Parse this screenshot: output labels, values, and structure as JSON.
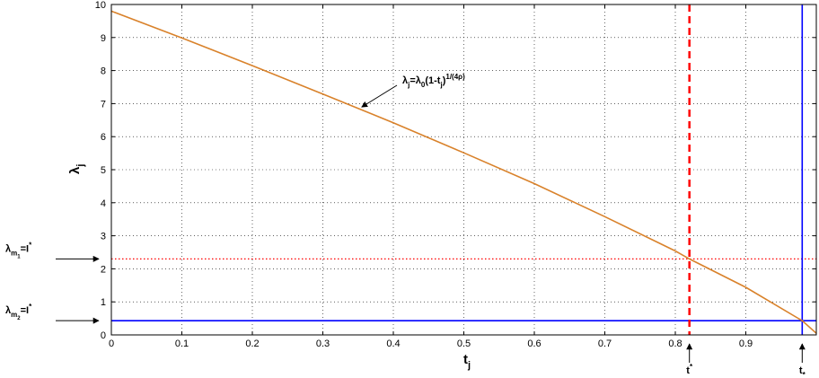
{
  "chart_data": {
    "type": "line",
    "xlabel": "t",
    "xlabel_sub": "j",
    "ylabel": "λ",
    "ylabel_sub": "j",
    "xlim": [
      0,
      1
    ],
    "ylim": [
      0,
      10
    ],
    "xticks": [
      0,
      0.1,
      0.2,
      0.3,
      0.4,
      0.5,
      0.6,
      0.7,
      0.8,
      0.9
    ],
    "xtick_labels": [
      "0",
      "0.1",
      "0.2",
      "0.3",
      "0.4",
      "0.5",
      "0.6",
      "0.7",
      "0.8",
      "0.9"
    ],
    "yticks": [
      0,
      1,
      2,
      3,
      4,
      5,
      6,
      7,
      8,
      9,
      10
    ],
    "ytick_labels": [
      "0",
      "1",
      "2",
      "3",
      "4",
      "5",
      "6",
      "7",
      "8",
      "9",
      "10"
    ],
    "grid": true,
    "series": [
      {
        "color": "#d9822b",
        "x": [
          0,
          0.1,
          0.2,
          0.3,
          0.4,
          0.5,
          0.6,
          0.7,
          0.8,
          0.82,
          0.9,
          0.98,
          1.0
        ],
        "y": [
          9.8,
          8.99,
          8.15,
          7.29,
          6.42,
          5.51,
          4.58,
          3.58,
          2.54,
          2.3,
          1.44,
          0.43,
          0.05
        ]
      }
    ],
    "curve_annotation": {
      "parts": [
        "λ",
        "j",
        "=λ",
        "0",
        "(1-t",
        "j",
        ")",
        "1/(4ρ)"
      ],
      "arrow_to": [
        0.35,
        6.95
      ]
    },
    "reference_lines": [
      {
        "orientation": "horizontal",
        "value": 2.3,
        "color": "#ff0000",
        "style": "dotted",
        "label_parts": [
          "λ",
          "m",
          "1",
          "=I",
          "*"
        ]
      },
      {
        "orientation": "horizontal",
        "value": 0.43,
        "color": "#0000ff",
        "style": "solid",
        "label_parts": [
          "λ",
          "m",
          "2",
          "=I",
          "*"
        ]
      },
      {
        "orientation": "vertical",
        "value": 0.82,
        "color": "#ff0000",
        "style": "dashed",
        "label_parts": [
          "t",
          "*"
        ]
      },
      {
        "orientation": "vertical",
        "value": 0.98,
        "color": "#0000ff",
        "style": "solid",
        "label_parts": [
          "t",
          "*"
        ]
      }
    ]
  }
}
